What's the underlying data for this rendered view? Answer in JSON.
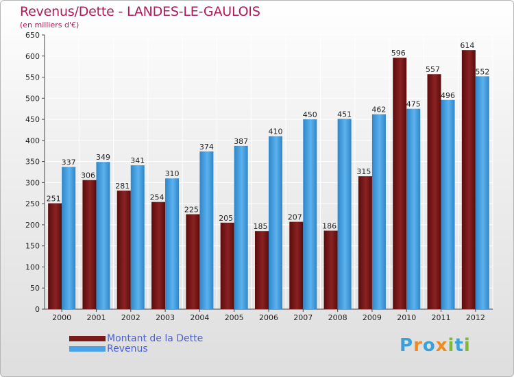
{
  "header": {
    "title": "Revenus/Dette - LANDES-LE-GAULOIS",
    "subtitle": "(en milliers d'€)"
  },
  "colors": {
    "dette": "#7a1a1a",
    "revenus": "#4aa3e6",
    "title": "#b0195a",
    "legend_text": "#4a5fd6"
  },
  "brand": {
    "name": "Proxiti",
    "letters": [
      {
        "ch": "P",
        "color": "#3aa0d8"
      },
      {
        "ch": "r",
        "color": "#f08a1c"
      },
      {
        "ch": "o",
        "color": "#3aa0d8"
      },
      {
        "ch": "x",
        "color": "#f08a1c"
      },
      {
        "ch": "i",
        "color": "#7fb832"
      },
      {
        "ch": "t",
        "color": "#3aa0d8"
      },
      {
        "ch": "i",
        "color": "#7fb832"
      }
    ]
  },
  "legend": {
    "position": "bottom-left",
    "items": [
      {
        "label": "Montant de la Dette",
        "color": "#7a1a1a"
      },
      {
        "label": "Revenus",
        "color": "#4aa3e6"
      }
    ]
  },
  "chart_data": {
    "type": "bar",
    "title": "Revenus/Dette - LANDES-LE-GAULOIS",
    "subtitle": "(en milliers d'€)",
    "categories": [
      "2000",
      "2001",
      "2002",
      "2003",
      "2004",
      "2005",
      "2006",
      "2007",
      "2008",
      "2009",
      "2010",
      "2011",
      "2012"
    ],
    "series": [
      {
        "name": "Montant de la Dette",
        "values": [
          251,
          306,
          281,
          254,
          225,
          205,
          185,
          207,
          186,
          315,
          596,
          557,
          614
        ]
      },
      {
        "name": "Revenus",
        "values": [
          337,
          349,
          341,
          310,
          374,
          387,
          410,
          450,
          451,
          462,
          475,
          496,
          552
        ]
      }
    ],
    "ylim": [
      0,
      650
    ],
    "yticks": [
      0,
      50,
      100,
      150,
      200,
      250,
      300,
      350,
      400,
      450,
      500,
      550,
      600,
      650
    ],
    "grid": true,
    "legend": "bottom-left"
  }
}
